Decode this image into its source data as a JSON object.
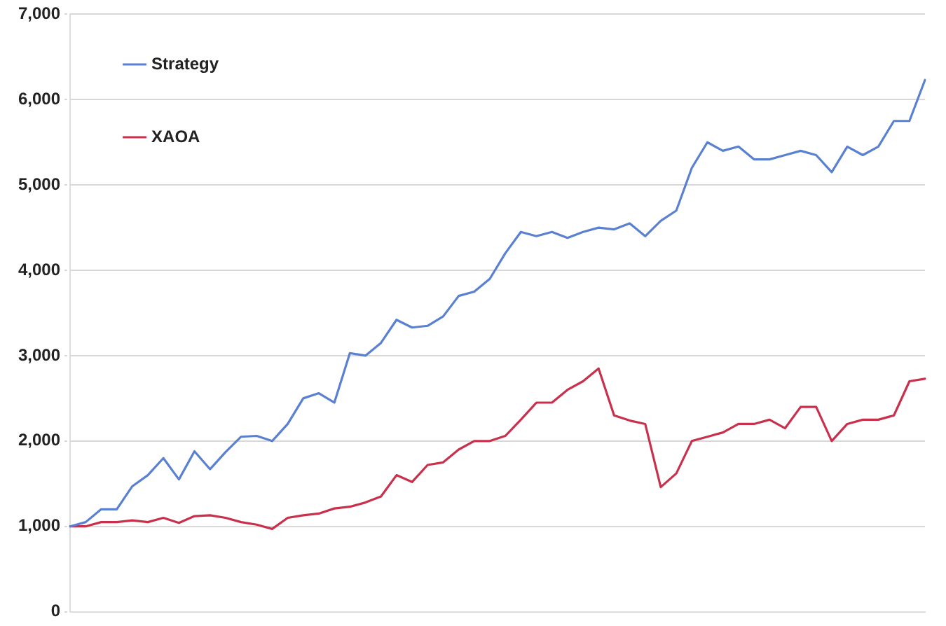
{
  "chart_data": {
    "type": "line",
    "categories": [
      null,
      null,
      null,
      null,
      null,
      null,
      null,
      null,
      null,
      null,
      null,
      null,
      null,
      null,
      null,
      null,
      null,
      null,
      null,
      null,
      null,
      null,
      null,
      null,
      null,
      null,
      null,
      null,
      null,
      null,
      null,
      null,
      null,
      null,
      null,
      null,
      null,
      null,
      null,
      null,
      null,
      null,
      null,
      null,
      null,
      null,
      null,
      null,
      null,
      null,
      null,
      null,
      null,
      null,
      null,
      null
    ],
    "series": [
      {
        "name": "Strategy",
        "color": "#5a80d2",
        "values": [
          1000,
          1050,
          1200,
          1200,
          1470,
          1600,
          1800,
          1550,
          1880,
          1670,
          1870,
          2050,
          2060,
          2000,
          2200,
          2500,
          2560,
          2450,
          3030,
          3000,
          3150,
          3420,
          3330,
          3350,
          3460,
          3700,
          3750,
          3900,
          4200,
          4450,
          4400,
          4450,
          4380,
          4450,
          4500,
          4480,
          4550,
          4400,
          4580,
          4700,
          5200,
          5500,
          5400,
          5450,
          5300,
          5300,
          5350,
          5400,
          5350,
          5150,
          5450,
          5350,
          5450,
          5750,
          5750,
          6230
        ]
      },
      {
        "name": "XAOA",
        "color": "#c9304c",
        "values": [
          1000,
          1000,
          1050,
          1050,
          1070,
          1050,
          1100,
          1040,
          1120,
          1130,
          1100,
          1050,
          1020,
          970,
          1100,
          1130,
          1150,
          1210,
          1230,
          1280,
          1350,
          1600,
          1520,
          1720,
          1750,
          1900,
          2000,
          2000,
          2060,
          2250,
          2450,
          2450,
          2600,
          2700,
          2850,
          2300,
          2240,
          2200,
          1460,
          1620,
          2000,
          2050,
          2100,
          2200,
          2200,
          2250,
          2150,
          2400,
          2400,
          2000,
          2200,
          2250,
          2250,
          2300,
          2700,
          2730
        ]
      }
    ],
    "ylim": [
      0,
      7000
    ],
    "yticks": [
      0,
      {
        "value": 1000,
        "label": "1,000"
      },
      {
        "value": 2000,
        "label": "2,000"
      },
      {
        "value": 3000,
        "label": "3,000"
      },
      {
        "value": 4000,
        "label": "4,000"
      },
      {
        "value": 5000,
        "label": "5,000"
      },
      {
        "value": 6000,
        "label": "6,000"
      },
      {
        "value": 7000,
        "label": "7,000"
      }
    ],
    "grid": "y",
    "legend": "top left",
    "tick_labels": "y",
    "marker": "none",
    "line_style": "solid"
  }
}
